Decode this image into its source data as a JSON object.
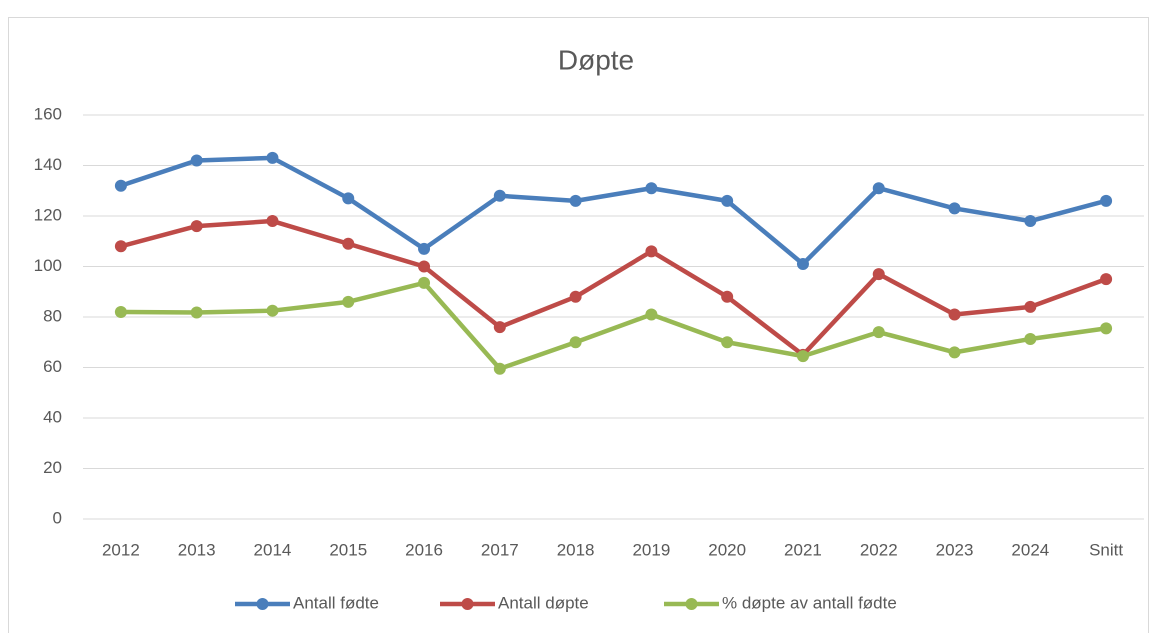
{
  "chart_data": {
    "type": "line",
    "title": "Døpte",
    "categories": [
      "2012",
      "2013",
      "2014",
      "2015",
      "2016",
      "2017",
      "2018",
      "2019",
      "2020",
      "2021",
      "2022",
      "2023",
      "2024",
      "Snitt"
    ],
    "series": [
      {
        "name": "Antall fødte",
        "color": "#4a7ebb",
        "values": [
          132,
          142,
          143,
          127,
          107,
          128,
          126,
          131,
          126,
          101,
          131,
          123,
          118,
          126
        ]
      },
      {
        "name": "Antall døpte",
        "color": "#be4b48",
        "values": [
          108,
          116,
          118,
          109,
          100,
          76,
          88,
          106,
          88,
          65,
          97,
          81,
          84,
          95
        ]
      },
      {
        "name": "% døpte av antall fødte",
        "color": "#98b954",
        "values": [
          82,
          81.8,
          82.5,
          86,
          93.5,
          59.5,
          70,
          81,
          70,
          64.5,
          74,
          66,
          71.3,
          75.5
        ]
      }
    ],
    "ylim": [
      0,
      160
    ],
    "yticks": [
      0,
      20,
      40,
      60,
      80,
      100,
      120,
      140,
      160
    ],
    "grid": true,
    "legend": "bottom"
  }
}
